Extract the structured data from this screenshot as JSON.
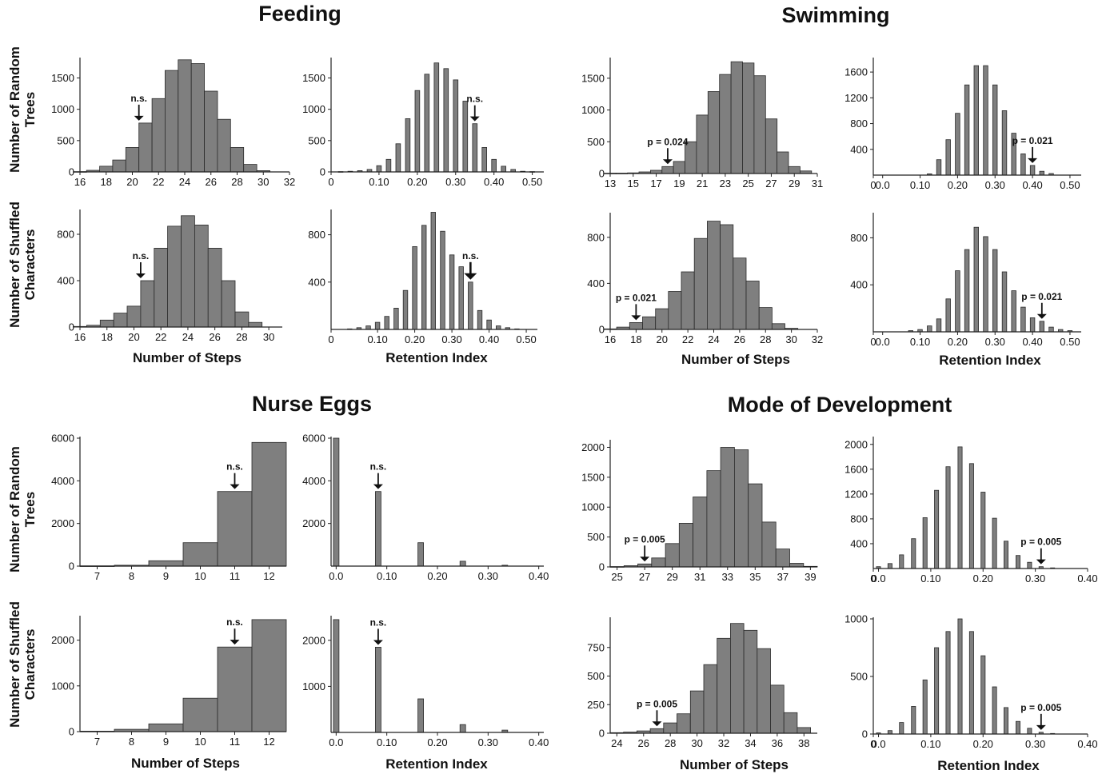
{
  "section_titles": {
    "feeding": "Feeding",
    "swimming": "Swimming",
    "nurse_eggs": "Nurse Eggs",
    "mode_of_development": "Mode of Development"
  },
  "row_labels": {
    "random_trees": "Number of Random Trees",
    "shuffled_characters": "Number of Shuffled Characters"
  },
  "axis_titles": {
    "steps": "Number of Steps",
    "retention": "Retention Index"
  },
  "colors": {
    "bar_fill": "#7f7f7f",
    "bar_stroke": "#2a2a2a",
    "axis": "#222222"
  },
  "chart_data": [
    {
      "id": "feeding-steps-random",
      "type": "bar",
      "section": "Feeding",
      "row": "Random Trees",
      "xlabel": "",
      "ylabel": "",
      "x_range": [
        16,
        32
      ],
      "bar_width": 1,
      "x": [
        16,
        17,
        18,
        19,
        20,
        21,
        22,
        23,
        24,
        25,
        26,
        27,
        28,
        29,
        30
      ],
      "values": [
        5,
        25,
        90,
        190,
        390,
        780,
        1170,
        1620,
        1790,
        1730,
        1290,
        840,
        390,
        120,
        20
      ],
      "ylim": [
        0,
        1800
      ],
      "yticks": [
        0,
        500,
        1000,
        1500
      ],
      "xticks": [
        16,
        18,
        20,
        22,
        24,
        26,
        28,
        30,
        32
      ],
      "xtick_labels": [
        "16",
        "18",
        "20",
        "22",
        "24",
        "26",
        "28",
        "30",
        "32"
      ],
      "marker": {
        "label": "n.s.",
        "x": 20.5
      }
    },
    {
      "id": "feeding-ri-random",
      "type": "bar",
      "section": "Feeding",
      "row": "Random Trees",
      "xlabel": "",
      "ylabel": "",
      "x_range": [
        -0.025,
        0.53
      ],
      "bar_width": 0.012,
      "x": [
        0.0,
        0.025,
        0.05,
        0.075,
        0.1,
        0.125,
        0.15,
        0.175,
        0.2,
        0.225,
        0.25,
        0.275,
        0.3,
        0.325,
        0.35,
        0.375,
        0.4,
        0.425,
        0.45,
        0.475,
        0.5
      ],
      "values": [
        5,
        10,
        20,
        40,
        100,
        200,
        450,
        850,
        1300,
        1560,
        1740,
        1650,
        1470,
        1130,
        770,
        390,
        200,
        90,
        40,
        10,
        5
      ],
      "ylim": [
        0,
        1800
      ],
      "yticks": [
        0,
        500,
        1000,
        1500
      ],
      "xticks": [
        -0.025,
        0.1,
        0.2,
        0.3,
        0.4,
        0.5
      ],
      "xtick_labels": [
        "0",
        "0.10",
        "0.20",
        "0.30",
        "0.40",
        "0.50"
      ],
      "marker": {
        "label": "n.s.",
        "x": 0.35
      }
    },
    {
      "id": "swimming-steps-random",
      "type": "bar",
      "section": "Swimming",
      "row": "Random Trees",
      "xlabel": "",
      "ylabel": "",
      "x_range": [
        13,
        31
      ],
      "bar_width": 1,
      "x": [
        13,
        14,
        15,
        16,
        17,
        18,
        19,
        20,
        21,
        22,
        23,
        24,
        25,
        26,
        27,
        28,
        29,
        30
      ],
      "values": [
        5,
        5,
        10,
        25,
        50,
        110,
        190,
        500,
        920,
        1290,
        1560,
        1760,
        1740,
        1540,
        860,
        340,
        110,
        40
      ],
      "ylim": [
        0,
        1800
      ],
      "yticks": [
        0,
        500,
        1000,
        1500
      ],
      "xticks": [
        13,
        15,
        17,
        19,
        21,
        23,
        25,
        27,
        29,
        31
      ],
      "xtick_labels": [
        "13",
        "15",
        "17",
        "19",
        "21",
        "23",
        "25",
        "27",
        "29",
        "31"
      ],
      "marker": {
        "label": "p = 0.024",
        "x": 18
      }
    },
    {
      "id": "swimming-ri-random",
      "type": "bar",
      "section": "Swimming",
      "row": "Random Trees",
      "xlabel": "",
      "ylabel": "",
      "x_range": [
        -0.025,
        0.53
      ],
      "bar_width": 0.012,
      "x": [
        0.0,
        0.025,
        0.05,
        0.075,
        0.1,
        0.125,
        0.15,
        0.175,
        0.2,
        0.225,
        0.25,
        0.275,
        0.3,
        0.325,
        0.35,
        0.375,
        0.4,
        0.425,
        0.45
      ],
      "values": [
        0,
        0,
        0,
        0,
        0,
        20,
        240,
        550,
        960,
        1400,
        1700,
        1700,
        1400,
        1000,
        650,
        330,
        150,
        60,
        25
      ],
      "ylim": [
        0,
        1800
      ],
      "yticks": [
        400,
        800,
        1200,
        1600
      ],
      "xticks": [
        -0.025,
        0.0,
        0.1,
        0.2,
        0.3,
        0.4,
        0.5
      ],
      "xtick_labels": [
        "0",
        "0.0",
        "0.10",
        "0.20",
        "0.30",
        "0.40",
        "0.50"
      ],
      "marker": {
        "label": "p = 0.021",
        "x": 0.4
      }
    },
    {
      "id": "feeding-steps-shuffled",
      "type": "bar",
      "section": "Feeding",
      "row": "Shuffled Characters",
      "xlabel": "Number of Steps",
      "ylabel": "",
      "x_range": [
        16,
        31
      ],
      "bar_width": 1,
      "x": [
        16,
        17,
        18,
        19,
        20,
        21,
        22,
        23,
        24,
        25,
        26,
        27,
        28,
        29
      ],
      "values": [
        5,
        15,
        60,
        120,
        180,
        400,
        680,
        870,
        960,
        880,
        680,
        400,
        130,
        40
      ],
      "ylim": [
        0,
        1000
      ],
      "yticks": [
        0,
        400,
        800
      ],
      "xticks": [
        16,
        18,
        20,
        22,
        24,
        26,
        28,
        30
      ],
      "xtick_labels": [
        "16",
        "18",
        "20",
        "22",
        "24",
        "26",
        "28",
        "30"
      ],
      "marker": {
        "label": "n.s.",
        "x": 20.5
      }
    },
    {
      "id": "feeding-ri-shuffled",
      "type": "bar",
      "section": "Feeding",
      "row": "Shuffled Characters",
      "xlabel": "Retention Index",
      "ylabel": "",
      "x_range": [
        -0.025,
        0.53
      ],
      "bar_width": 0.012,
      "x": [
        0.025,
        0.05,
        0.075,
        0.1,
        0.125,
        0.15,
        0.175,
        0.2,
        0.225,
        0.25,
        0.275,
        0.3,
        0.325,
        0.35,
        0.375,
        0.4,
        0.425,
        0.45,
        0.475
      ],
      "values": [
        5,
        15,
        30,
        60,
        110,
        180,
        330,
        700,
        880,
        990,
        830,
        630,
        530,
        400,
        160,
        80,
        30,
        15,
        5
      ],
      "ylim": [
        0,
        1000
      ],
      "yticks": [
        400,
        800
      ],
      "xticks": [
        -0.025,
        0.1,
        0.2,
        0.3,
        0.4,
        0.5
      ],
      "xtick_labels": [
        "0",
        "0.10",
        "0.20",
        "0.30",
        "0.40",
        "0.50"
      ],
      "marker": {
        "label": "n.s.",
        "x": 0.35,
        "bold": true
      }
    },
    {
      "id": "swimming-steps-shuffled",
      "type": "bar",
      "section": "Swimming",
      "row": "Shuffled Characters",
      "xlabel": "Number of Steps",
      "ylabel": "",
      "x_range": [
        16,
        32
      ],
      "bar_width": 1,
      "x": [
        16,
        17,
        18,
        19,
        20,
        21,
        22,
        23,
        24,
        25,
        26,
        27,
        28,
        29,
        30
      ],
      "values": [
        5,
        20,
        60,
        110,
        180,
        330,
        500,
        790,
        940,
        910,
        620,
        420,
        190,
        50,
        10
      ],
      "ylim": [
        0,
        1000
      ],
      "yticks": [
        0,
        400,
        800
      ],
      "xticks": [
        16,
        18,
        20,
        22,
        24,
        26,
        28,
        30,
        32
      ],
      "xtick_labels": [
        "16",
        "18",
        "20",
        "22",
        "24",
        "26",
        "28",
        "30",
        "32"
      ],
      "marker": {
        "label": "p = 0.021",
        "x": 18
      }
    },
    {
      "id": "swimming-ri-shuffled",
      "type": "bar",
      "section": "Swimming",
      "row": "Shuffled Characters",
      "xlabel": "Retention Index",
      "ylabel": "",
      "x_range": [
        -0.025,
        0.53
      ],
      "bar_width": 0.012,
      "x": [
        0.075,
        0.1,
        0.125,
        0.15,
        0.175,
        0.2,
        0.225,
        0.25,
        0.275,
        0.3,
        0.325,
        0.35,
        0.375,
        0.4,
        0.425,
        0.45,
        0.475,
        0.5
      ],
      "values": [
        10,
        20,
        50,
        110,
        280,
        520,
        700,
        890,
        810,
        700,
        510,
        350,
        210,
        120,
        90,
        40,
        20,
        10
      ],
      "ylim": [
        0,
        1000
      ],
      "yticks": [
        400,
        800
      ],
      "xticks": [
        -0.025,
        0.0,
        0.1,
        0.2,
        0.3,
        0.4,
        0.5
      ],
      "xtick_labels": [
        "0",
        "0.0",
        "0.10",
        "0.20",
        "0.30",
        "0.40",
        "0.50"
      ],
      "marker": {
        "label": "p = 0.021",
        "x": 0.425
      }
    },
    {
      "id": "nurse-steps-random",
      "type": "bar",
      "section": "Nurse Eggs",
      "row": "Random Trees",
      "xlabel": "",
      "ylabel": "",
      "x_range": [
        6.5,
        12.5
      ],
      "bar_width": 1,
      "x": [
        7,
        8,
        9,
        10,
        11,
        12
      ],
      "values": [
        10,
        40,
        250,
        1100,
        3500,
        5800
      ],
      "ylim": [
        0,
        6000
      ],
      "yticks": [
        0,
        2000,
        4000,
        6000
      ],
      "xticks": [
        7,
        8,
        9,
        10,
        11,
        12
      ],
      "xtick_labels": [
        "7",
        "8",
        "9",
        "10",
        "11",
        "12"
      ],
      "marker": {
        "label": "n.s.",
        "x": 11
      }
    },
    {
      "id": "nurse-ri-random",
      "type": "bar",
      "section": "Nurse Eggs",
      "row": "Random Trees",
      "xlabel": "",
      "ylabel": "",
      "x_range": [
        -0.01,
        0.41
      ],
      "bar_width": 0.011,
      "x": [
        0.0,
        0.083,
        0.167,
        0.25,
        0.333
      ],
      "values": [
        6000,
        3500,
        1100,
        230,
        40
      ],
      "ylim": [
        0,
        6000
      ],
      "yticks": [
        2000,
        4000,
        6000
      ],
      "xticks": [
        0.0,
        0.1,
        0.2,
        0.3,
        0.4
      ],
      "xtick_labels": [
        "0.0",
        "0.10",
        "0.20",
        "0.30",
        "0.40"
      ],
      "marker": {
        "label": "n.s.",
        "x": 0.083
      }
    },
    {
      "id": "mode-steps-random",
      "type": "bar",
      "section": "Mode of Development",
      "row": "Random Trees",
      "xlabel": "",
      "ylabel": "",
      "x_range": [
        24.5,
        39.5
      ],
      "bar_width": 1,
      "x": [
        25,
        26,
        27,
        28,
        29,
        30,
        31,
        32,
        33,
        34,
        35,
        36,
        37,
        38,
        39
      ],
      "values": [
        5,
        20,
        50,
        150,
        390,
        730,
        1170,
        1610,
        2000,
        1960,
        1390,
        750,
        300,
        60,
        10
      ],
      "ylim": [
        0,
        2100
      ],
      "yticks": [
        0,
        500,
        1000,
        1500,
        2000
      ],
      "xticks": [
        25,
        27,
        29,
        31,
        33,
        35,
        37,
        39
      ],
      "xtick_labels": [
        "25",
        "27",
        "29",
        "31",
        "33",
        "35",
        "37",
        "39"
      ],
      "marker": {
        "label": "p = 0.005",
        "x": 27
      }
    },
    {
      "id": "mode-ri-random",
      "type": "bar",
      "section": "Mode of Development",
      "row": "Random Trees",
      "xlabel": "",
      "ylabel": "",
      "x_range": [
        -0.01,
        0.4
      ],
      "bar_width": 0.008,
      "x": [
        0.0,
        0.022,
        0.044,
        0.067,
        0.089,
        0.111,
        0.133,
        0.156,
        0.178,
        0.2,
        0.222,
        0.244,
        0.267,
        0.289,
        0.311,
        0.333
      ],
      "values": [
        30,
        80,
        220,
        480,
        820,
        1260,
        1640,
        1960,
        1690,
        1230,
        810,
        440,
        210,
        100,
        30,
        10
      ],
      "ylim": [
        0,
        2100
      ],
      "yticks": [
        400,
        800,
        1200,
        1600,
        2000
      ],
      "xticks": [
        -0.01,
        0.0,
        0.1,
        0.2,
        0.3,
        0.4
      ],
      "xtick_labels": [
        "0",
        "0.0",
        "0.10",
        "0.20",
        "0.30",
        "0.40"
      ],
      "marker": {
        "label": "p = 0.005",
        "x": 0.311
      }
    },
    {
      "id": "nurse-steps-shuffled",
      "type": "bar",
      "section": "Nurse Eggs",
      "row": "Shuffled Characters",
      "xlabel": "Number of Steps",
      "ylabel": "",
      "x_range": [
        6.5,
        12.5
      ],
      "bar_width": 1,
      "x": [
        7,
        8,
        9,
        10,
        11,
        12
      ],
      "values": [
        10,
        50,
        170,
        730,
        1850,
        2450
      ],
      "ylim": [
        0,
        2500
      ],
      "yticks": [
        0,
        1000,
        2000
      ],
      "xticks": [
        7,
        8,
        9,
        10,
        11,
        12
      ],
      "xtick_labels": [
        "7",
        "8",
        "9",
        "10",
        "11",
        "12"
      ],
      "marker": {
        "label": "n.s.",
        "x": 11
      }
    },
    {
      "id": "nurse-ri-shuffled",
      "type": "bar",
      "section": "Nurse Eggs",
      "row": "Shuffled Characters",
      "xlabel": "Retention Index",
      "ylabel": "",
      "x_range": [
        -0.01,
        0.41
      ],
      "bar_width": 0.011,
      "x": [
        0.0,
        0.083,
        0.167,
        0.25,
        0.333
      ],
      "values": [
        2450,
        1850,
        730,
        170,
        50
      ],
      "ylim": [
        0,
        2500
      ],
      "yticks": [
        1000,
        2000
      ],
      "xticks": [
        0.0,
        0.1,
        0.2,
        0.3,
        0.4
      ],
      "xtick_labels": [
        "0.0",
        "0.10",
        "0.20",
        "0.30",
        "0.40"
      ],
      "marker": {
        "label": "n.s.",
        "x": 0.083
      }
    },
    {
      "id": "mode-steps-shuffled",
      "type": "bar",
      "section": "Mode of Development",
      "row": "Shuffled Characters",
      "xlabel": "Number of Steps",
      "ylabel": "",
      "x_range": [
        23.5,
        39
      ],
      "bar_width": 1,
      "x": [
        24,
        25,
        26,
        27,
        28,
        29,
        30,
        31,
        32,
        33,
        34,
        35,
        36,
        37,
        38
      ],
      "values": [
        5,
        10,
        20,
        40,
        90,
        170,
        370,
        600,
        830,
        960,
        900,
        740,
        420,
        180,
        50
      ],
      "ylim": [
        0,
        1000
      ],
      "yticks": [
        0,
        250,
        500,
        750
      ],
      "xticks": [
        24,
        26,
        28,
        30,
        32,
        34,
        36,
        38
      ],
      "xtick_labels": [
        "24",
        "26",
        "28",
        "30",
        "32",
        "34",
        "36",
        "38"
      ],
      "marker": {
        "label": "p = 0.005",
        "x": 27
      }
    },
    {
      "id": "mode-ri-shuffled",
      "type": "bar",
      "section": "Mode of Development",
      "row": "Shuffled Characters",
      "xlabel": "Retention Index",
      "ylabel": "",
      "x_range": [
        -0.01,
        0.4
      ],
      "bar_width": 0.008,
      "x": [
        0.0,
        0.022,
        0.044,
        0.067,
        0.089,
        0.111,
        0.133,
        0.156,
        0.178,
        0.2,
        0.222,
        0.244,
        0.267,
        0.289,
        0.311,
        0.333
      ],
      "values": [
        10,
        30,
        100,
        240,
        470,
        750,
        890,
        1000,
        890,
        680,
        410,
        230,
        110,
        50,
        15,
        5
      ],
      "ylim": [
        0,
        1000
      ],
      "yticks": [
        0,
        500,
        1000
      ],
      "xticks": [
        -0.01,
        0.0,
        0.1,
        0.2,
        0.3,
        0.4
      ],
      "xtick_labels": [
        "0",
        "0.0",
        "0.10",
        "0.20",
        "0.30",
        "0.40"
      ],
      "marker": {
        "label": "p = 0.005",
        "x": 0.311
      }
    }
  ]
}
